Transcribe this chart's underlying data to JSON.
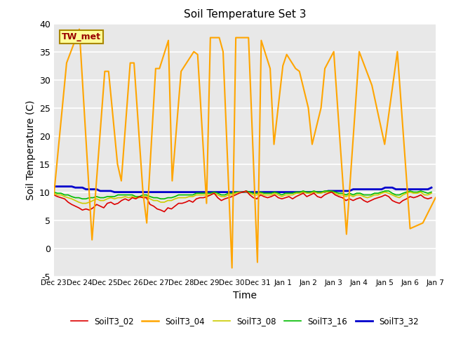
{
  "title": "Soil Temperature Set 3",
  "xlabel": "Time",
  "ylabel": "Soil Temperature (C)",
  "ylim": [
    -5,
    40
  ],
  "yticks": [
    -5,
    0,
    5,
    10,
    15,
    20,
    25,
    30,
    35,
    40
  ],
  "bg_color": "#e8e8e8",
  "series": {
    "SoilT3_02": {
      "color": "#dd0000",
      "linewidth": 1.2,
      "x": [
        0.0,
        0.14,
        0.28,
        0.42,
        0.56,
        0.7,
        0.84,
        0.98,
        1.12,
        1.26,
        1.4,
        1.54,
        1.68,
        1.82,
        1.96,
        2.1,
        2.24,
        2.38,
        2.52,
        2.66,
        2.8,
        2.94,
        3.08,
        3.22,
        3.36,
        3.5,
        3.64,
        3.78,
        3.92,
        4.06,
        4.2,
        4.34,
        4.48,
        4.62,
        4.76,
        4.9,
        5.04,
        5.18,
        5.32,
        5.46,
        5.6,
        5.74,
        5.88,
        6.02,
        6.16,
        6.3,
        6.44,
        6.58,
        6.72,
        6.86,
        7.0,
        7.14,
        7.28,
        7.42,
        7.56,
        7.7,
        7.84,
        7.98,
        8.12,
        8.26,
        8.4,
        8.54,
        8.68,
        8.82,
        8.96,
        9.1,
        9.24,
        9.38,
        9.52,
        9.66,
        9.8,
        9.94,
        10.08,
        10.22,
        10.36,
        10.5,
        10.64,
        10.78,
        10.92,
        11.06,
        11.2,
        11.34,
        11.48,
        11.62,
        11.76,
        11.9,
        12.04,
        12.18,
        12.32,
        12.46,
        12.6,
        12.74,
        12.88,
        13.02,
        13.16,
        13.3,
        13.44,
        13.58,
        13.72,
        13.86,
        14.0,
        14.14,
        14.28,
        14.42,
        14.56,
        14.7,
        14.84
      ],
      "values": [
        9.5,
        9.2,
        9.0,
        8.8,
        8.2,
        7.8,
        7.5,
        7.2,
        6.8,
        7.0,
        6.8,
        7.2,
        7.8,
        7.5,
        7.2,
        8.0,
        8.2,
        7.8,
        8.0,
        8.5,
        8.8,
        8.5,
        9.0,
        8.8,
        9.2,
        9.0,
        9.0,
        7.8,
        7.5,
        7.0,
        6.8,
        6.5,
        7.2,
        7.0,
        7.5,
        8.0,
        8.0,
        8.2,
        8.5,
        8.2,
        8.8,
        9.0,
        9.0,
        9.2,
        9.5,
        9.8,
        9.0,
        8.5,
        8.8,
        9.0,
        9.2,
        9.5,
        9.8,
        10.0,
        10.2,
        9.5,
        9.0,
        8.8,
        9.5,
        9.2,
        9.0,
        9.2,
        9.5,
        9.0,
        8.8,
        9.0,
        9.2,
        8.8,
        9.2,
        9.5,
        9.8,
        9.2,
        9.5,
        9.8,
        9.2,
        9.0,
        9.5,
        9.8,
        10.0,
        9.5,
        9.2,
        9.0,
        8.5,
        8.8,
        8.5,
        8.8,
        9.0,
        8.5,
        8.2,
        8.5,
        8.8,
        9.0,
        9.2,
        9.5,
        9.2,
        8.5,
        8.2,
        8.0,
        8.5,
        8.8,
        9.2,
        9.0,
        9.2,
        9.5,
        9.0,
        8.8,
        9.0
      ]
    },
    "SoilT3_04": {
      "color": "#ffa500",
      "linewidth": 1.5,
      "x": [
        0.0,
        0.5,
        1.0,
        1.5,
        2.0,
        2.15,
        2.5,
        2.65,
        3.0,
        3.15,
        3.5,
        3.65,
        4.0,
        4.15,
        4.5,
        4.65,
        5.0,
        5.5,
        5.65,
        6.0,
        6.15,
        6.5,
        6.65,
        7.0,
        7.15,
        7.5,
        7.65,
        8.0,
        8.15,
        8.5,
        8.65,
        9.0,
        9.15,
        9.5,
        9.65,
        10.0,
        10.15,
        10.5,
        10.65,
        11.0,
        11.5,
        12.0,
        12.5,
        13.0,
        13.5,
        14.0,
        14.5,
        15.0
      ],
      "values": [
        9.5,
        33.0,
        39.0,
        1.5,
        31.5,
        31.5,
        15.0,
        12.0,
        33.0,
        33.0,
        10.0,
        4.5,
        32.0,
        32.0,
        37.0,
        12.0,
        31.5,
        35.0,
        34.5,
        8.0,
        37.5,
        37.5,
        35.0,
        -3.5,
        37.5,
        37.5,
        37.5,
        -2.5,
        37.0,
        32.0,
        18.5,
        32.5,
        34.5,
        32.0,
        31.5,
        25.0,
        18.5,
        25.0,
        32.0,
        35.0,
        2.5,
        35.0,
        29.0,
        18.5,
        35.0,
        3.5,
        4.5,
        9.0
      ]
    },
    "SoilT3_08": {
      "color": "#cccc00",
      "linewidth": 1.2,
      "x": [
        0.0,
        0.14,
        0.28,
        0.42,
        0.56,
        0.7,
        0.84,
        0.98,
        1.12,
        1.26,
        1.4,
        1.54,
        1.68,
        1.82,
        1.96,
        2.1,
        2.24,
        2.38,
        2.52,
        2.66,
        2.8,
        2.94,
        3.08,
        3.22,
        3.36,
        3.5,
        3.64,
        3.78,
        3.92,
        4.06,
        4.2,
        4.34,
        4.48,
        4.62,
        4.76,
        4.9,
        5.04,
        5.18,
        5.32,
        5.46,
        5.6,
        5.74,
        5.88,
        6.02,
        6.16,
        6.3,
        6.44,
        6.58,
        6.72,
        6.86,
        7.0,
        7.14,
        7.28,
        7.42,
        7.56,
        7.7,
        7.84,
        7.98,
        8.12,
        8.26,
        8.4,
        8.54,
        8.68,
        8.82,
        8.96,
        9.1,
        9.24,
        9.38,
        9.52,
        9.66,
        9.8,
        9.94,
        10.08,
        10.22,
        10.36,
        10.5,
        10.64,
        10.78,
        10.92,
        11.06,
        11.2,
        11.34,
        11.48,
        11.62,
        11.76,
        11.9,
        12.04,
        12.18,
        12.32,
        12.46,
        12.6,
        12.74,
        12.88,
        13.02,
        13.16,
        13.3,
        13.44,
        13.58,
        13.72,
        13.86,
        14.0,
        14.14,
        14.28,
        14.42,
        14.56,
        14.7,
        14.84
      ],
      "values": [
        9.8,
        9.5,
        9.5,
        9.2,
        9.0,
        8.8,
        8.5,
        8.2,
        8.0,
        8.0,
        8.2,
        8.5,
        8.8,
        8.5,
        8.5,
        8.8,
        9.0,
        8.8,
        9.0,
        9.0,
        9.2,
        9.0,
        9.2,
        9.0,
        9.0,
        9.2,
        9.2,
        8.8,
        8.5,
        8.5,
        8.2,
        8.2,
        8.5,
        8.5,
        8.8,
        9.0,
        9.0,
        9.0,
        9.2,
        9.2,
        9.5,
        9.5,
        9.5,
        9.5,
        9.5,
        9.8,
        9.5,
        9.2,
        9.2,
        9.5,
        9.5,
        9.8,
        10.0,
        10.0,
        10.0,
        9.8,
        9.5,
        9.5,
        9.8,
        9.5,
        9.5,
        9.5,
        9.8,
        9.5,
        9.2,
        9.5,
        9.5,
        9.5,
        9.8,
        9.8,
        10.0,
        9.8,
        9.8,
        10.0,
        9.8,
        9.8,
        10.0,
        10.0,
        10.0,
        9.8,
        9.5,
        9.5,
        9.2,
        9.5,
        9.2,
        9.5,
        9.5,
        9.2,
        9.0,
        9.2,
        9.5,
        9.5,
        9.8,
        10.0,
        9.8,
        9.5,
        9.2,
        9.0,
        9.5,
        9.8,
        10.0,
        9.8,
        9.8,
        10.0,
        9.5,
        9.5,
        9.8
      ]
    },
    "SoilT3_16": {
      "color": "#00bb00",
      "linewidth": 1.2,
      "x": [
        0.0,
        0.14,
        0.28,
        0.42,
        0.56,
        0.7,
        0.84,
        0.98,
        1.12,
        1.26,
        1.4,
        1.54,
        1.68,
        1.82,
        1.96,
        2.1,
        2.24,
        2.38,
        2.52,
        2.66,
        2.8,
        2.94,
        3.08,
        3.22,
        3.36,
        3.5,
        3.64,
        3.78,
        3.92,
        4.06,
        4.2,
        4.34,
        4.48,
        4.62,
        4.76,
        4.9,
        5.04,
        5.18,
        5.32,
        5.46,
        5.6,
        5.74,
        5.88,
        6.02,
        6.16,
        6.3,
        6.44,
        6.58,
        6.72,
        6.86,
        7.0,
        7.14,
        7.28,
        7.42,
        7.56,
        7.7,
        7.84,
        7.98,
        8.12,
        8.26,
        8.4,
        8.54,
        8.68,
        8.82,
        8.96,
        9.1,
        9.24,
        9.38,
        9.52,
        9.66,
        9.8,
        9.94,
        10.08,
        10.22,
        10.36,
        10.5,
        10.64,
        10.78,
        10.92,
        11.06,
        11.2,
        11.34,
        11.48,
        11.62,
        11.76,
        11.9,
        12.04,
        12.18,
        12.32,
        12.46,
        12.6,
        12.74,
        12.88,
        13.02,
        13.16,
        13.3,
        13.44,
        13.58,
        13.72,
        13.86,
        14.0,
        14.14,
        14.28,
        14.42,
        14.56,
        14.7,
        14.84
      ],
      "values": [
        10.0,
        9.8,
        9.8,
        9.5,
        9.5,
        9.2,
        9.0,
        9.0,
        8.8,
        8.8,
        9.0,
        9.0,
        9.2,
        9.0,
        9.0,
        9.2,
        9.2,
        9.2,
        9.5,
        9.5,
        9.5,
        9.5,
        9.5,
        9.2,
        9.2,
        9.5,
        9.5,
        9.2,
        9.0,
        9.0,
        8.8,
        8.8,
        9.0,
        9.0,
        9.2,
        9.5,
        9.5,
        9.5,
        9.5,
        9.5,
        9.8,
        9.8,
        9.8,
        9.8,
        9.8,
        10.0,
        9.8,
        9.5,
        9.5,
        9.8,
        9.8,
        10.0,
        10.0,
        10.0,
        10.2,
        10.0,
        9.8,
        9.8,
        10.0,
        9.8,
        9.8,
        9.8,
        10.0,
        9.8,
        9.5,
        9.8,
        9.8,
        9.8,
        10.0,
        10.0,
        10.2,
        10.0,
        10.0,
        10.2,
        10.0,
        10.0,
        10.2,
        10.2,
        10.2,
        10.0,
        9.8,
        9.8,
        9.5,
        9.8,
        9.5,
        9.8,
        9.8,
        9.5,
        9.5,
        9.5,
        9.8,
        9.8,
        10.0,
        10.2,
        10.2,
        9.8,
        9.5,
        9.5,
        9.8,
        10.0,
        10.2,
        10.0,
        10.0,
        10.2,
        10.0,
        9.8,
        10.0
      ]
    },
    "SoilT3_32": {
      "color": "#0000cc",
      "linewidth": 2.0,
      "x": [
        0.0,
        0.14,
        0.28,
        0.42,
        0.56,
        0.7,
        0.84,
        0.98,
        1.12,
        1.26,
        1.4,
        1.54,
        1.68,
        1.82,
        1.96,
        2.1,
        2.24,
        2.38,
        2.52,
        2.66,
        2.8,
        2.94,
        3.08,
        3.22,
        3.36,
        3.5,
        3.64,
        3.78,
        3.92,
        4.06,
        4.2,
        4.34,
        4.48,
        4.62,
        4.76,
        4.9,
        5.04,
        5.18,
        5.32,
        5.46,
        5.6,
        5.74,
        5.88,
        6.02,
        6.16,
        6.3,
        6.44,
        6.58,
        6.72,
        6.86,
        7.0,
        7.14,
        7.28,
        7.42,
        7.56,
        7.7,
        7.84,
        7.98,
        8.12,
        8.26,
        8.4,
        8.54,
        8.68,
        8.82,
        8.96,
        9.1,
        9.24,
        9.38,
        9.52,
        9.66,
        9.8,
        9.94,
        10.08,
        10.22,
        10.36,
        10.5,
        10.64,
        10.78,
        10.92,
        11.06,
        11.2,
        11.34,
        11.48,
        11.62,
        11.76,
        11.9,
        12.04,
        12.18,
        12.32,
        12.46,
        12.6,
        12.74,
        12.88,
        13.02,
        13.16,
        13.3,
        13.44,
        13.58,
        13.72,
        13.86,
        14.0,
        14.14,
        14.28,
        14.42,
        14.56,
        14.7,
        14.84
      ],
      "values": [
        11.0,
        11.0,
        11.0,
        11.0,
        11.0,
        11.0,
        10.8,
        10.8,
        10.8,
        10.5,
        10.5,
        10.5,
        10.5,
        10.2,
        10.2,
        10.2,
        10.2,
        10.0,
        10.0,
        10.0,
        10.0,
        10.0,
        10.0,
        10.0,
        10.0,
        10.0,
        10.0,
        10.0,
        10.0,
        10.0,
        10.0,
        10.0,
        10.0,
        10.0,
        10.0,
        10.0,
        10.0,
        10.0,
        10.0,
        10.0,
        10.0,
        10.0,
        10.0,
        10.0,
        10.0,
        10.0,
        10.0,
        10.0,
        10.0,
        10.0,
        10.0,
        10.0,
        10.0,
        10.0,
        10.0,
        10.0,
        10.0,
        10.0,
        10.0,
        10.0,
        10.0,
        10.0,
        10.0,
        10.0,
        10.0,
        10.0,
        10.0,
        10.0,
        10.0,
        10.0,
        10.0,
        10.0,
        10.0,
        10.0,
        10.0,
        10.0,
        10.0,
        10.2,
        10.2,
        10.2,
        10.2,
        10.2,
        10.2,
        10.2,
        10.5,
        10.5,
        10.5,
        10.5,
        10.5,
        10.5,
        10.5,
        10.5,
        10.5,
        10.8,
        10.8,
        10.8,
        10.5,
        10.5,
        10.5,
        10.5,
        10.5,
        10.5,
        10.5,
        10.5,
        10.5,
        10.5,
        10.8
      ]
    }
  },
  "xtick_labels": [
    "Dec 23",
    "Dec 24",
    "Dec 25",
    "Dec 26",
    "Dec 27",
    "Dec 28",
    "Dec 29",
    "Dec 30",
    "Dec 31",
    "Jan 1",
    "Jan 2",
    "Jan 3",
    "Jan 4",
    "Jan 5",
    "Jan 6",
    "Jan 7"
  ],
  "total_days": 15,
  "tw_met_label": "TW_met",
  "tw_met_bg": "#ffff99",
  "tw_met_border": "#aa8800",
  "legend_labels": [
    "SoilT3_02",
    "SoilT3_04",
    "SoilT3_08",
    "SoilT3_16",
    "SoilT3_32"
  ],
  "legend_colors": [
    "#dd0000",
    "#ffa500",
    "#cccc00",
    "#00bb00",
    "#0000cc"
  ]
}
